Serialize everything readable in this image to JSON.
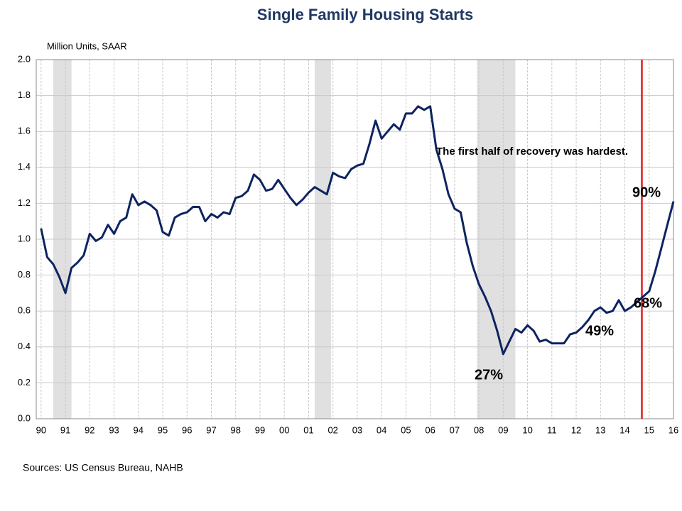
{
  "chart_data": {
    "type": "line",
    "title": "Single Family Housing Starts",
    "y_label": "Million Units, SAAR",
    "source": "Sources: US Census Bureau, NAHB",
    "annotations": [
      "The first half of recovery was hardest.",
      "90%",
      "68%",
      "49%",
      "27%"
    ],
    "x": [
      1990,
      1990.25,
      1990.5,
      1990.75,
      1991,
      1991.25,
      1991.5,
      1991.75,
      1992,
      1992.25,
      1992.5,
      1992.75,
      1993,
      1993.25,
      1993.5,
      1993.75,
      1994,
      1994.25,
      1994.5,
      1994.75,
      1995,
      1995.25,
      1995.5,
      1995.75,
      1996,
      1996.25,
      1996.5,
      1996.75,
      1997,
      1997.25,
      1997.5,
      1997.75,
      1998,
      1998.25,
      1998.5,
      1998.75,
      1999,
      1999.25,
      1999.5,
      1999.75,
      2000,
      2000.25,
      2000.5,
      2000.75,
      2001,
      2001.25,
      2001.5,
      2001.75,
      2002,
      2002.25,
      2002.5,
      2002.75,
      2003,
      2003.25,
      2003.5,
      2003.75,
      2004,
      2004.25,
      2004.5,
      2004.75,
      2005,
      2005.25,
      2005.5,
      2005.75,
      2006,
      2006.25,
      2006.5,
      2006.75,
      2007,
      2007.25,
      2007.5,
      2007.75,
      2008,
      2008.25,
      2008.5,
      2008.75,
      2009,
      2009.25,
      2009.5,
      2009.75,
      2010,
      2010.25,
      2010.5,
      2010.75,
      2011,
      2011.25,
      2011.5,
      2011.75,
      2012,
      2012.25,
      2012.5,
      2012.75,
      2013,
      2013.25,
      2013.5,
      2013.75,
      2014,
      2014.25,
      2014.5,
      2014.75,
      2015,
      2015.25,
      2015.5,
      2015.75,
      2016
    ],
    "series": [
      {
        "name": "Single Family Housing Starts",
        "color": "#0d2460",
        "values": [
          1.06,
          0.9,
          0.86,
          0.79,
          0.7,
          0.84,
          0.87,
          0.91,
          1.03,
          0.99,
          1.01,
          1.08,
          1.03,
          1.1,
          1.12,
          1.25,
          1.19,
          1.21,
          1.19,
          1.16,
          1.04,
          1.02,
          1.12,
          1.14,
          1.15,
          1.18,
          1.18,
          1.1,
          1.14,
          1.12,
          1.15,
          1.14,
          1.23,
          1.24,
          1.27,
          1.36,
          1.33,
          1.27,
          1.28,
          1.33,
          1.28,
          1.23,
          1.19,
          1.22,
          1.26,
          1.29,
          1.27,
          1.25,
          1.37,
          1.35,
          1.34,
          1.39,
          1.41,
          1.42,
          1.53,
          1.66,
          1.56,
          1.6,
          1.64,
          1.61,
          1.7,
          1.7,
          1.74,
          1.72,
          1.74,
          1.5,
          1.39,
          1.25,
          1.17,
          1.15,
          0.98,
          0.85,
          0.75,
          0.68,
          0.6,
          0.49,
          0.36,
          0.43,
          0.5,
          0.48,
          0.52,
          0.49,
          0.43,
          0.44,
          0.42,
          0.42,
          0.42,
          0.47,
          0.48,
          0.51,
          0.55,
          0.6,
          0.62,
          0.59,
          0.6,
          0.66,
          0.6,
          0.62,
          0.65,
          0.68,
          0.71,
          0.82,
          0.95,
          1.08,
          1.21
        ]
      }
    ],
    "recessions": [
      [
        1990.5,
        1991.25
      ],
      [
        2001.25,
        2001.92
      ],
      [
        2007.92,
        2009.5
      ]
    ],
    "recession_color": "#e0e0e0",
    "marker_x": 2014.7,
    "marker_color": "#e21b1b",
    "xlim": [
      1989.8,
      2016.0
    ],
    "xticks": [
      {
        "value": 1990,
        "label": "90"
      },
      {
        "value": 1991,
        "label": "91"
      },
      {
        "value": 1992,
        "label": "92"
      },
      {
        "value": 1993,
        "label": "93"
      },
      {
        "value": 1994,
        "label": "94"
      },
      {
        "value": 1995,
        "label": "95"
      },
      {
        "value": 1996,
        "label": "96"
      },
      {
        "value": 1997,
        "label": "97"
      },
      {
        "value": 1998,
        "label": "98"
      },
      {
        "value": 1999,
        "label": "99"
      },
      {
        "value": 2000,
        "label": "00"
      },
      {
        "value": 2001,
        "label": "01"
      },
      {
        "value": 2002,
        "label": "02"
      },
      {
        "value": 2003,
        "label": "03"
      },
      {
        "value": 2004,
        "label": "04"
      },
      {
        "value": 2005,
        "label": "05"
      },
      {
        "value": 2006,
        "label": "06"
      },
      {
        "value": 2007,
        "label": "07"
      },
      {
        "value": 2008,
        "label": "08"
      },
      {
        "value": 2009,
        "label": "09"
      },
      {
        "value": 2010,
        "label": "10"
      },
      {
        "value": 2011,
        "label": "11"
      },
      {
        "value": 2012,
        "label": "12"
      },
      {
        "value": 2013,
        "label": "13"
      },
      {
        "value": 2014,
        "label": "14"
      },
      {
        "value": 2015,
        "label": "15"
      },
      {
        "value": 2016,
        "label": "16"
      }
    ],
    "ylim": [
      0,
      2
    ],
    "yticks": [
      {
        "value": 0,
        "label": "0.0"
      },
      0.2,
      0.4,
      0.6,
      0.8,
      {
        "value": 1,
        "label": "1.0"
      },
      1.2,
      1.4,
      1.6,
      1.8,
      {
        "value": 2,
        "label": "2.0"
      }
    ],
    "grid": true
  }
}
